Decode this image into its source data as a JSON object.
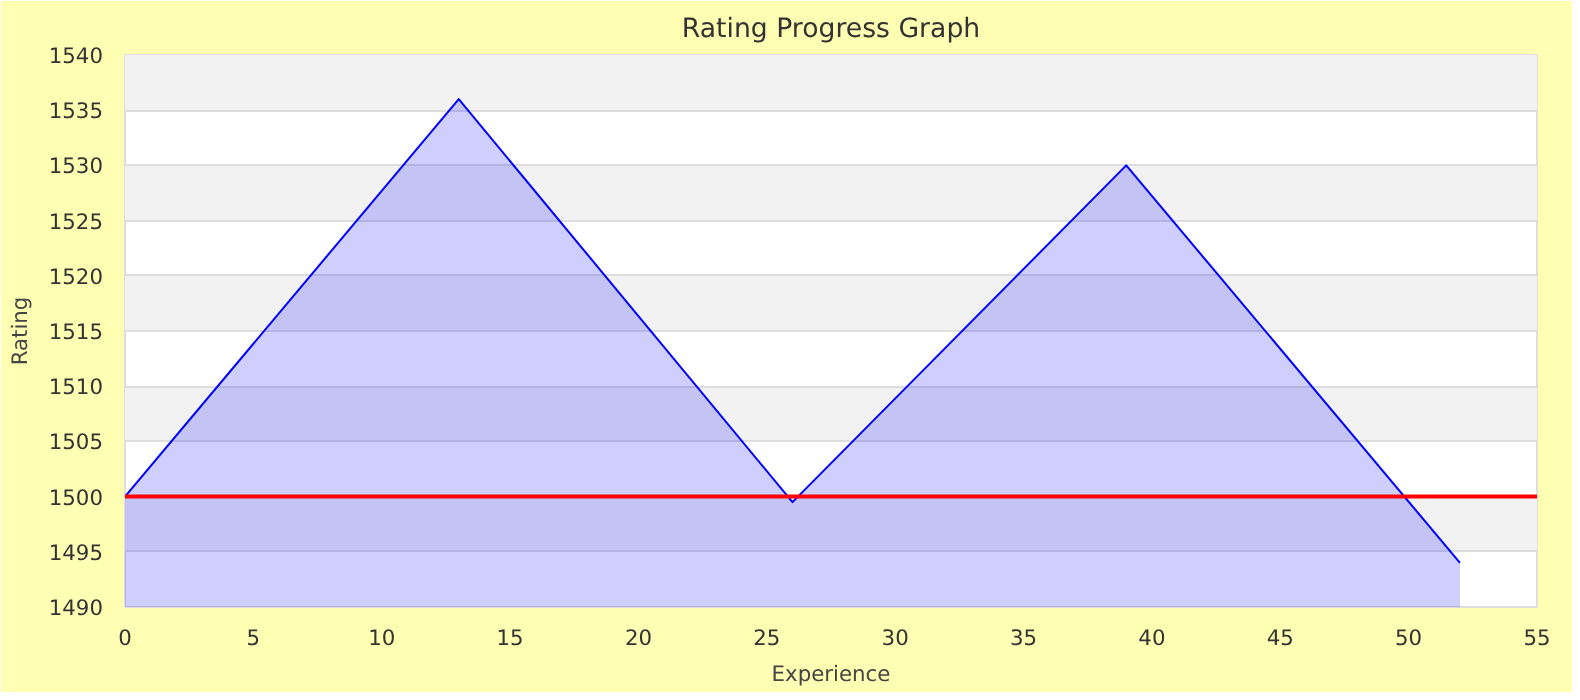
{
  "chart_data": {
    "type": "area",
    "title": "Rating Progress Graph",
    "xlabel": "Experience",
    "ylabel": "Rating",
    "x": [
      0,
      13,
      26,
      39,
      52
    ],
    "series": [
      {
        "color": "#0000ff",
        "values": [
          1500,
          1536,
          1499.5,
          1530,
          1494
        ]
      }
    ],
    "xlim": [
      0,
      55
    ],
    "xticks": [
      0,
      5,
      10,
      15,
      20,
      25,
      30,
      35,
      40,
      45,
      50,
      55
    ],
    "ylim": [
      1490,
      1540
    ],
    "yticks": [
      1490,
      1495,
      1500,
      1505,
      1510,
      1515,
      1520,
      1525,
      1530,
      1535,
      1540
    ],
    "ref_lines": [
      {
        "axis": "y",
        "value": 1500,
        "color": "#ff0000"
      }
    ],
    "grid": "y"
  }
}
